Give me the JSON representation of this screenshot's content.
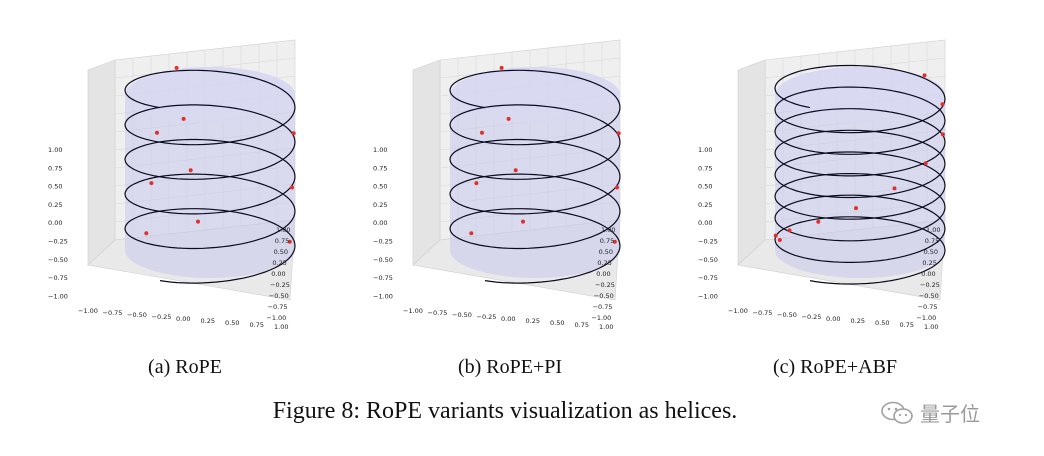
{
  "panels": [
    {
      "label": "(a) RoPE",
      "turns": 5
    },
    {
      "label": "(b) RoPE+PI",
      "turns": 5
    },
    {
      "label": "(c) RoPE+ABF",
      "turns": 8
    }
  ],
  "caption": "Figure 8: RoPE variants visualization as helices.",
  "watermark": "量子位",
  "ticks": {
    "z": [
      "1.00",
      "0.75",
      "0.50",
      "0.25",
      "0.00",
      "−0.25",
      "−0.50",
      "−0.75",
      "−1.00"
    ],
    "x": [
      "−1.00",
      "−0.75",
      "−0.50",
      "−0.25",
      "0.00",
      "0.25",
      "0.50",
      "0.75",
      "1.00"
    ],
    "y": [
      "1.00",
      "0.75",
      "0.50",
      "0.25",
      "0.00",
      "−0.25",
      "−0.50",
      "−0.75",
      "−1.00"
    ]
  },
  "colors": {
    "helix": "#0b0b1f",
    "points": "#e0302a",
    "cylinder": "#c9c9ee",
    "grid": "#d6d6d6",
    "pane": "#efefef"
  }
}
